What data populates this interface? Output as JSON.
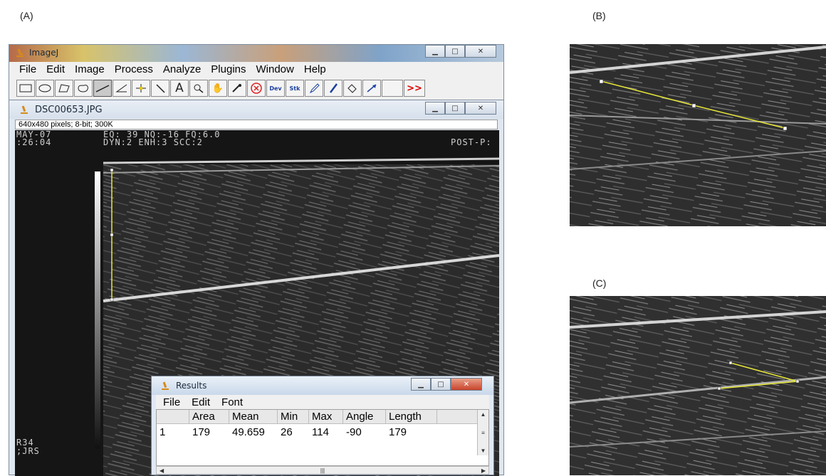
{
  "panel_labels": {
    "a": "(A)",
    "b": "(B)",
    "c": "(C)"
  },
  "imagej": {
    "title": "ImageJ",
    "menus": [
      "File",
      "Edit",
      "Image",
      "Process",
      "Analyze",
      "Plugins",
      "Window",
      "Help"
    ],
    "tools": [
      "rectangle-tool",
      "oval-tool",
      "polygon-tool",
      "freehand-tool",
      "line-tool",
      "angle-tool",
      "point-tool",
      "wand-tool",
      "text-tool",
      "magnifier-tool",
      "hand-tool",
      "color-picker-tool",
      "remove-overlay-tool",
      "developer-menu",
      "stack-menu",
      "pencil-tool",
      "brush-tool",
      "flood-fill-tool",
      "arrow-tool",
      "more-tools"
    ],
    "tool_dev": "Dev",
    "tool_stk": "Stk",
    "tool_more": ">>",
    "tool_text": "A"
  },
  "image_window": {
    "title": "DSC00653.JPG",
    "info": "640x480 pixels; 8-bit; 300K",
    "overlay": {
      "line1_left": "MAY-07",
      "line2_left": ":26:04",
      "line1_mid": "EQ: 39 NQ:-16 FQ:6.0",
      "line2_mid": "DYN:2 ENH:3 SCC:2",
      "line2_right": "POST-P:",
      "bottom_left1": "R34",
      "bottom_left2": ";JRS"
    }
  },
  "results": {
    "title": "Results",
    "menus": [
      "File",
      "Edit",
      "Font"
    ],
    "columns": [
      "",
      "Area",
      "Mean",
      "Min",
      "Max",
      "Angle",
      "Length"
    ],
    "rows": [
      [
        "1",
        "179",
        "49.659",
        "26",
        "114",
        "-90",
        "179"
      ]
    ],
    "scroll_mid": "|||"
  },
  "colors": {
    "roi": "#e8e83a",
    "roi_handle": "#ffffff",
    "titlebar": "#dce6f2"
  }
}
